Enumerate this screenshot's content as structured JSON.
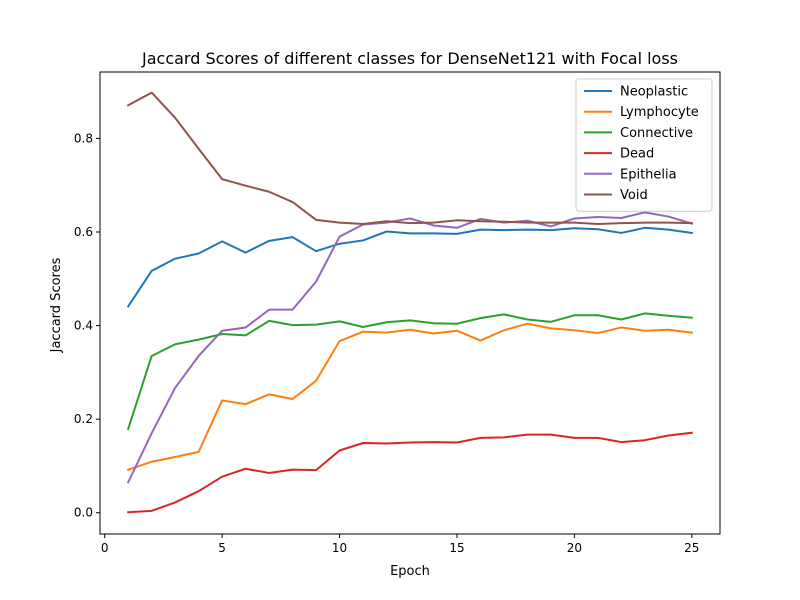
{
  "chart_data": {
    "type": "line",
    "title": "Jaccard Scores of different classes for DenseNet121 with Focal loss",
    "xlabel": "Epoch",
    "ylabel": "Jaccard Scores",
    "xlim": [
      -0.2,
      26.2
    ],
    "ylim": [
      -0.0455,
      0.942
    ],
    "xticks": [
      0,
      5,
      10,
      15,
      20,
      25
    ],
    "xtick_labels": [
      "0",
      "5",
      "10",
      "15",
      "20",
      "25"
    ],
    "yticks": [
      0.0,
      0.2,
      0.4,
      0.6,
      0.8
    ],
    "ytick_labels": [
      "0.0",
      "0.2",
      "0.4",
      "0.6",
      "0.8"
    ],
    "grid": false,
    "legend_position": "top-right",
    "x": [
      1,
      2,
      3,
      4,
      5,
      6,
      7,
      8,
      9,
      10,
      11,
      12,
      13,
      14,
      15,
      16,
      17,
      18,
      19,
      20,
      21,
      22,
      23,
      24,
      25
    ],
    "series": [
      {
        "name": "Neoplastic",
        "color": "#1f77b4",
        "values": [
          0.441,
          0.517,
          0.543,
          0.554,
          0.58,
          0.556,
          0.581,
          0.589,
          0.559,
          0.575,
          0.582,
          0.601,
          0.597,
          0.597,
          0.596,
          0.605,
          0.604,
          0.605,
          0.604,
          0.608,
          0.606,
          0.598,
          0.609,
          0.605,
          0.598
        ]
      },
      {
        "name": "Lymphocyte",
        "color": "#ff7f0e",
        "values": [
          0.092,
          0.109,
          0.119,
          0.13,
          0.24,
          0.232,
          0.253,
          0.243,
          0.282,
          0.367,
          0.387,
          0.385,
          0.391,
          0.383,
          0.389,
          0.368,
          0.39,
          0.404,
          0.394,
          0.39,
          0.384,
          0.396,
          0.389,
          0.391,
          0.385
        ]
      },
      {
        "name": "Connective",
        "color": "#2ca02c",
        "values": [
          0.179,
          0.335,
          0.36,
          0.37,
          0.382,
          0.379,
          0.41,
          0.401,
          0.402,
          0.409,
          0.397,
          0.407,
          0.411,
          0.405,
          0.404,
          0.416,
          0.424,
          0.413,
          0.408,
          0.422,
          0.422,
          0.413,
          0.426,
          0.421,
          0.417
        ]
      },
      {
        "name": "Dead",
        "color": "#d62728",
        "values": [
          0.001,
          0.004,
          0.022,
          0.046,
          0.077,
          0.094,
          0.085,
          0.092,
          0.091,
          0.133,
          0.149,
          0.148,
          0.15,
          0.151,
          0.15,
          0.16,
          0.161,
          0.167,
          0.167,
          0.16,
          0.16,
          0.151,
          0.155,
          0.165,
          0.171
        ]
      },
      {
        "name": "Epithelia",
        "color": "#9467bd",
        "values": [
          0.065,
          0.17,
          0.267,
          0.335,
          0.389,
          0.396,
          0.434,
          0.434,
          0.494,
          0.59,
          0.616,
          0.62,
          0.629,
          0.614,
          0.609,
          0.628,
          0.62,
          0.624,
          0.612,
          0.629,
          0.632,
          0.63,
          0.642,
          0.633,
          0.618
        ]
      },
      {
        "name": "Void",
        "color": "#8c564b",
        "values": [
          0.871,
          0.898,
          0.844,
          0.778,
          0.713,
          0.699,
          0.686,
          0.664,
          0.626,
          0.62,
          0.617,
          0.623,
          0.619,
          0.62,
          0.625,
          0.623,
          0.622,
          0.62,
          0.62,
          0.62,
          0.617,
          0.619,
          0.62,
          0.62,
          0.619
        ]
      }
    ]
  }
}
